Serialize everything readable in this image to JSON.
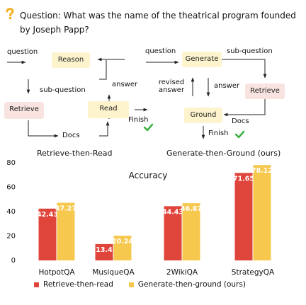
{
  "colors": {
    "retrieve_read": "#e0453c",
    "generate_ground": "#f6c84e",
    "box_yellow": "#fdf3cc",
    "box_pink": "#f8e3e0",
    "check_green": "#3cb043"
  },
  "question": "Question: What was the name of the theatrical program founded by Joseph Papp?",
  "diagram": {
    "left": {
      "question_label": "question",
      "reason": "Reason",
      "sub_question": "sub-question",
      "answer": "answer",
      "retrieve": "Retrieve",
      "read": "Read",
      "docs": "Docs",
      "finish": "Finish",
      "caption": "Retrieve-then-Read"
    },
    "right": {
      "question_label": "question",
      "generate": "Generate",
      "sub_question": "sub-question",
      "revised_answer": "revised answer",
      "answer": "answer",
      "retrieve": "Retrieve",
      "ground": "Ground",
      "docs": "Docs",
      "finish": "Finish",
      "caption": "Generate-then-Ground (ours)"
    }
  },
  "chart_data": {
    "type": "bar",
    "title": "Accuracy",
    "categories": [
      "HotpotQA",
      "MusiqueQA",
      "2WikiQA",
      "StrategyQA"
    ],
    "series": [
      {
        "name": "Retrieve-then-read",
        "values": [
          42.43,
          13.4,
          44.43,
          71.65
        ]
      },
      {
        "name": "Generate-then-ground (ours)",
        "values": [
          47.27,
          20.24,
          46.87,
          78.12
        ]
      }
    ],
    "yticks": [
      0,
      20,
      40,
      60,
      80
    ],
    "ylim": [
      0,
      80
    ],
    "grid": false
  }
}
